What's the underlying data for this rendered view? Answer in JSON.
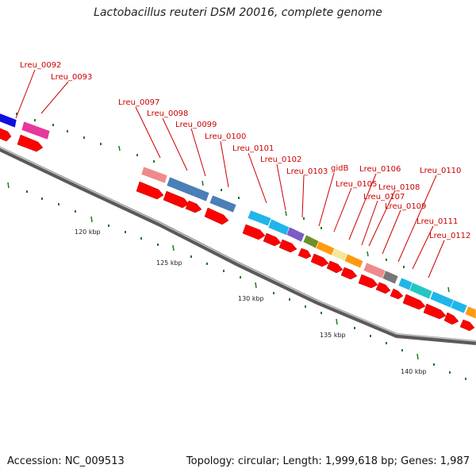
{
  "title": "Lactobacillus reuteri DSM 20016, complete genome",
  "accession": "Accession: NC_009513",
  "stats": "Topology: circular; Length: 1,999,618 bp; Genes: 1,987",
  "kbp_labels": [
    "120 kbp",
    "125 kbp",
    "130 kbp",
    "135 kbp",
    "140 kbp"
  ],
  "gene_labels": [
    "Lreu_0092",
    "Lreu_0093",
    "Lreu_0097",
    "Lreu_0098",
    "Lreu_0099",
    "Lreu_0100",
    "Lreu_0101",
    "Lreu_0102",
    "Lreu_0103",
    "gidB",
    "Lreu_0105",
    "Lreu_0106",
    "Lreu_0107",
    "Lreu_0108",
    "Lreu_0109",
    "Lreu_0110",
    "Lreu_0111",
    "Lreu_0112"
  ],
  "colors": {
    "backbone": "#777777",
    "strand_arrow": "#ff0000",
    "label": "#cc0000",
    "tick": "#1f7a1f",
    "cog_colors": [
      "#1010e0",
      "#e6399b",
      "#ef8a8a",
      "#4a7fb8",
      "#1fb6ea",
      "#7a5cc7",
      "#6e8f2a",
      "#ff9a12",
      "#f4e79a",
      "#777777"
    ]
  }
}
